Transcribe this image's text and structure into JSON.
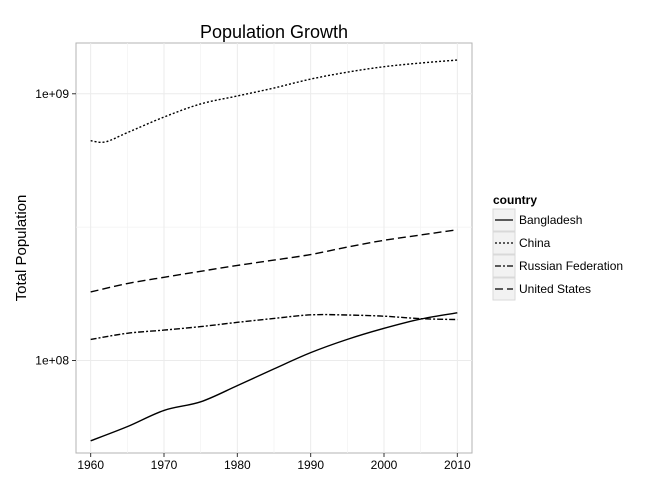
{
  "chart_data": {
    "type": "line",
    "title": "Population Growth",
    "xlabel": "",
    "ylabel": "Total Population",
    "y_scale": "log10",
    "xlim": [
      1958,
      2012
    ],
    "ylim": [
      45000000,
      1550000000
    ],
    "x_ticks": [
      1960,
      1970,
      1980,
      1990,
      2000,
      2010
    ],
    "x_tick_labels": [
      "1960",
      "1970",
      "1980",
      "1990",
      "2000",
      "2010"
    ],
    "y_ticks": [
      100000000,
      1000000000
    ],
    "y_tick_labels": [
      "1e+08",
      "1e+09"
    ],
    "grid": true,
    "legend_title": "country",
    "legend_position": "right",
    "series": [
      {
        "name": "Bangladesh",
        "dash": "solid",
        "x": [
          1960,
          1965,
          1970,
          1975,
          1980,
          1985,
          1990,
          1995,
          2000,
          2005,
          2010
        ],
        "y": [
          50000000,
          56500000,
          65000000,
          70000000,
          80500000,
          93000000,
          107000000,
          120000000,
          132000000,
          143000000,
          151000000
        ]
      },
      {
        "name": "China",
        "dash": "dotted",
        "x": [
          1960,
          1962,
          1965,
          1970,
          1975,
          1980,
          1985,
          1990,
          1995,
          2000,
          2005,
          2010
        ],
        "y": [
          667000000,
          660000000,
          715000000,
          818000000,
          916000000,
          981000000,
          1051000000,
          1135000000,
          1205000000,
          1263000000,
          1304000000,
          1338000000
        ]
      },
      {
        "name": "Russian Federation",
        "dash": "dashdot",
        "x": [
          1960,
          1965,
          1970,
          1975,
          1980,
          1985,
          1990,
          1995,
          2000,
          2005,
          2010
        ],
        "y": [
          119900000,
          126500000,
          130000000,
          134000000,
          139000000,
          143800000,
          148300000,
          148100000,
          146600000,
          143500000,
          142400000
        ]
      },
      {
        "name": "United States",
        "dash": "longdash",
        "x": [
          1960,
          1965,
          1970,
          1975,
          1980,
          1985,
          1990,
          1995,
          2000,
          2005,
          2010
        ],
        "y": [
          180700000,
          194300000,
          205100000,
          216000000,
          227200000,
          237900000,
          249600000,
          266300000,
          282200000,
          295500000,
          309300000
        ]
      }
    ]
  }
}
